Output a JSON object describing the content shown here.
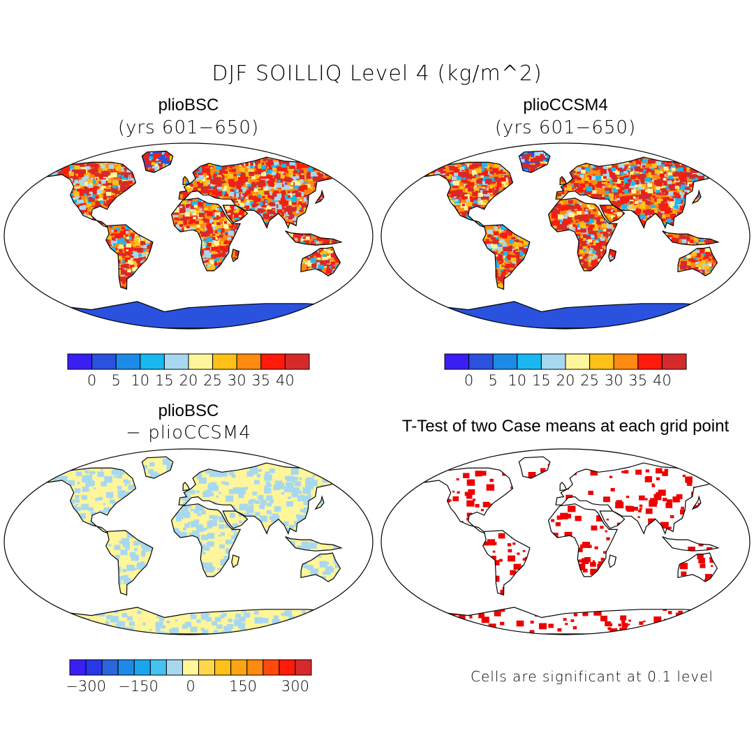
{
  "figure": {
    "title": "DJF SOILLIQ Level 4 (kg/m^2)",
    "footnote": "Cells are significant at 0.1 level"
  },
  "panels": [
    {
      "title": "plioBSC",
      "subtitle": "(yrs 601−650)",
      "kind": "field"
    },
    {
      "title": "plioCCSM4",
      "subtitle": "(yrs 601−650)",
      "kind": "field"
    },
    {
      "title": "plioBSC",
      "subtitle": "− plioCCSM4",
      "kind": "difference"
    },
    {
      "title": "T-Test of two Case means at each grid point",
      "subtitle": "",
      "kind": "significance"
    }
  ],
  "colorbars": {
    "field": {
      "colors": [
        "#3a1ff5",
        "#2a52de",
        "#1e8ae8",
        "#19b9f0",
        "#a8d8f0",
        "#fff59a",
        "#ffc118",
        "#ff8a10",
        "#ff1a0a",
        "#d62a2a"
      ],
      "labels": [
        "0",
        "5",
        "10",
        "15",
        "20",
        "25",
        "30",
        "35",
        "40"
      ]
    },
    "difference": {
      "colors": [
        "#3a1ff5",
        "#2838e6",
        "#2a66dc",
        "#1e8ae8",
        "#1aa6ee",
        "#45c2f0",
        "#a8d8f0",
        "#fff59a",
        "#ffd84a",
        "#ffc118",
        "#ffa513",
        "#ff8a10",
        "#ff4a0c",
        "#ff1a0a",
        "#d62a2a"
      ],
      "labels": [
        "−300",
        "−150",
        "0",
        "150",
        "300"
      ]
    }
  },
  "map_legend": {
    "ocean": "#ffffff",
    "antarctica_field": "#2a52de",
    "difference_fill": "#fff59a",
    "difference_patches": "#a8d8f0",
    "significant_cells": "#ee0000"
  }
}
